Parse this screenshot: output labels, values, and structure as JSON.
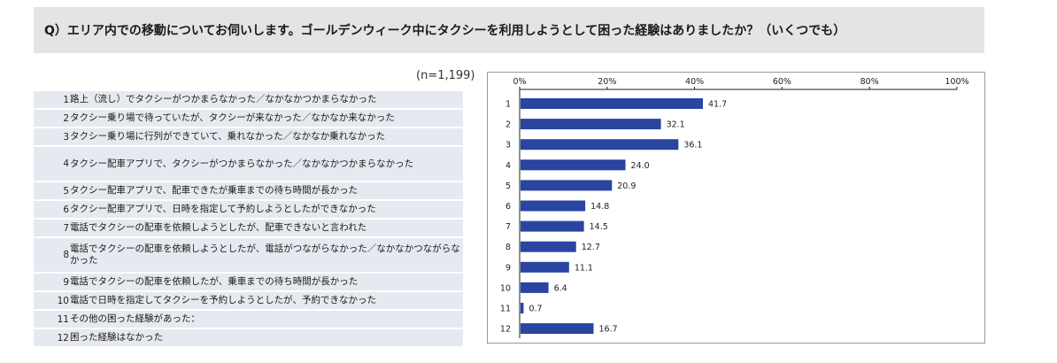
{
  "question": "Q）エリア内での移動についてお伺いします。ゴールデンウィーク中にタクシーを利用しようとして困った経験はありましたか？（いくつでも）",
  "sample_size": "(n=1,199)",
  "colors": {
    "bar": "#2a45a0",
    "header_bg": "#e4e4e4",
    "row_bg": "#e6e9ef"
  },
  "chart_data": {
    "type": "bar",
    "orientation": "horizontal",
    "title": "",
    "categories": [
      "1",
      "2",
      "3",
      "4",
      "5",
      "6",
      "7",
      "8",
      "9",
      "10",
      "11",
      "12"
    ],
    "category_labels": [
      "路上（流し）でタクシーがつかまらなかった／なかなかつかまらなかった",
      "タクシー乗り場で待っていたが、タクシーが来なかった／なかなか来なかった",
      "タクシー乗り場に行列ができていて、乗れなかった／なかなか乗れなかった",
      "タクシー配車アプリで、タクシーがつかまらなかった／なかなかつかまらなかった",
      "タクシー配車アプリで、配車できたが乗車までの待ち時間が長かった",
      "タクシー配車アプリで、日時を指定して予約しようとしたができなかった",
      "電話でタクシーの配車を依頼しようとしたが、配車できないと言われた",
      "電話でタクシーの配車を依頼しようとしたが、電話がつながらなかった／なかなかつながらなかった",
      "電話でタクシーの配車を依頼したが、乗車までの待ち時間が長かった",
      "電話で日時を指定してタクシーを予約しようとしたが、予約できなかった",
      "その他の困った経験があった：",
      "困った経験はなかった"
    ],
    "values": [
      41.7,
      32.1,
      36.1,
      24.0,
      20.9,
      14.8,
      14.5,
      12.7,
      11.1,
      6.4,
      0.7,
      16.7
    ],
    "value_labels": [
      "41.7",
      "32.1",
      "36.1",
      "24.0",
      "20.9",
      "14.8",
      "14.5",
      "12.7",
      "11.1",
      "6.4",
      "0.7",
      "16.7"
    ],
    "xlim": [
      0,
      100
    ],
    "xticks": [
      "0%",
      "20%",
      "40%",
      "60%",
      "80%",
      "100%"
    ],
    "grid": false
  }
}
